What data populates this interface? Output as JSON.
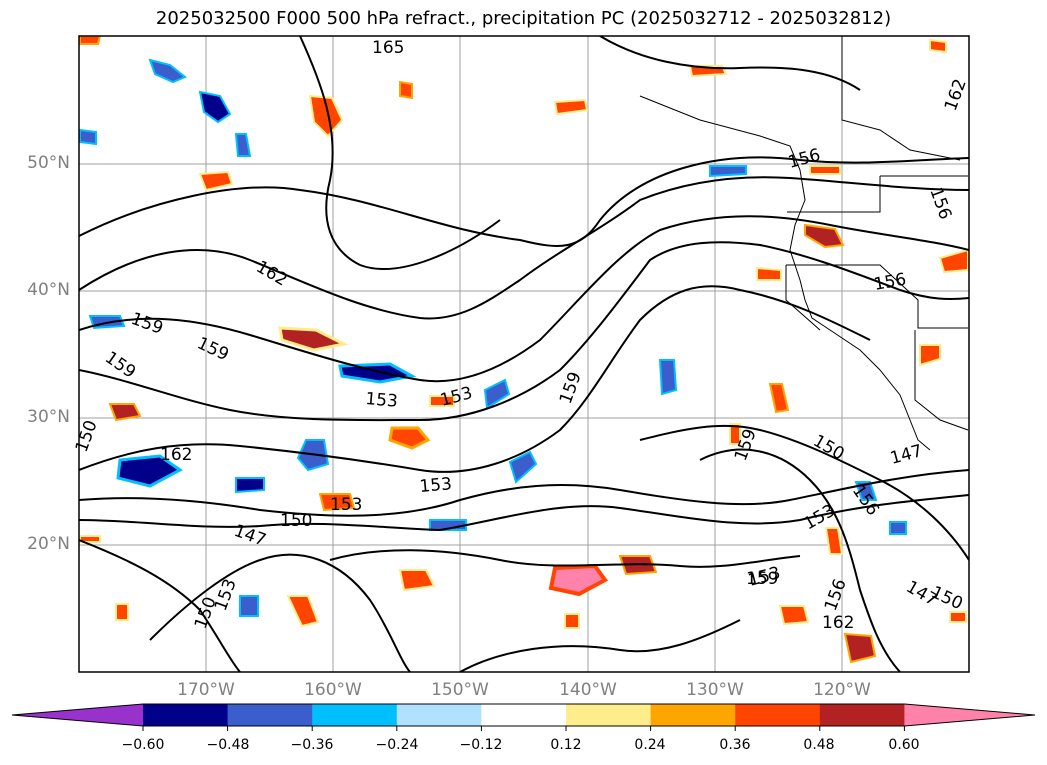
{
  "title": "2025032500 F000 500 hPa refract., precipitation PC (2025032712 - 2025032812)",
  "map": {
    "lat_ticks": [
      "50°N",
      "40°N",
      "30°N",
      "20°N"
    ],
    "lon_ticks": [
      "170°W",
      "160°W",
      "150°W",
      "140°W",
      "130°W",
      "120°W"
    ],
    "grid": true
  },
  "contours": {
    "labels": [
      "165",
      "162",
      "162",
      "159",
      "159",
      "159",
      "156",
      "156",
      "156",
      "159",
      "159",
      "153",
      "153",
      "153",
      "162",
      "153",
      "150",
      "147",
      "147",
      "150",
      "156",
      "150",
      "153",
      "153",
      "147",
      "159",
      "156",
      "162",
      "150",
      "153",
      "150"
    ]
  },
  "colorbar": {
    "ticks": [
      "−0.60",
      "−0.48",
      "−0.36",
      "−0.24",
      "−0.12",
      "0.12",
      "0.24",
      "0.36",
      "0.48",
      "0.60"
    ],
    "colors": [
      "#9932CC",
      "#00008B",
      "#3A5FCD",
      "#00BFFF",
      "#B0E2FF",
      "#FFFFFF",
      "#FFEC8B",
      "#FFA500",
      "#FF4500",
      "#B22222",
      "#FF82AB"
    ],
    "extend": "both"
  }
}
